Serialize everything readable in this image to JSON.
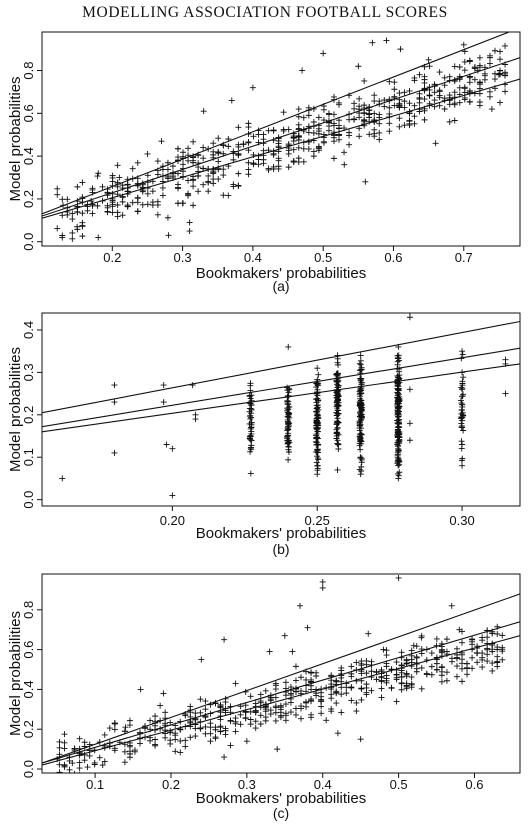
{
  "page_header": "MODELLING ASSOCIATION FOOTBALL SCORES",
  "chart_data": [
    {
      "type": "scatter",
      "panel_label": "(a)",
      "xlabel": "Bookmakers' probabilities",
      "ylabel": "Model probabilities",
      "xlim": [
        0.1,
        0.78
      ],
      "ylim": [
        -0.02,
        0.98
      ],
      "xticks": [
        0.2,
        0.3,
        0.4,
        0.5,
        0.6,
        0.7
      ],
      "xtick_labels": [
        "0.2",
        "0.3",
        "0.4",
        "0.5",
        "0.6",
        "0.7"
      ],
      "yticks": [
        0.0,
        0.2,
        0.4,
        0.6,
        0.8
      ],
      "ytick_labels": [
        "0.0",
        "0.2",
        "0.4",
        "0.6",
        "0.8"
      ],
      "grid": false,
      "marker": "+",
      "lines": [
        {
          "x": [
            0.1,
            0.78
          ],
          "y": [
            0.13,
            1.0
          ]
        },
        {
          "x": [
            0.1,
            0.78
          ],
          "y": [
            0.12,
            0.86
          ]
        },
        {
          "x": [
            0.1,
            0.78
          ],
          "y": [
            0.11,
            0.76
          ]
        }
      ],
      "cloud": {
        "x_range": [
          0.12,
          0.76
        ],
        "slope": 1.05,
        "intercept": 0.0,
        "spread": 0.085,
        "stack_step": 0.007,
        "n": 620
      },
      "points": [
        [
          0.13,
          0.17
        ],
        [
          0.15,
          0.07
        ],
        [
          0.17,
          0.19
        ],
        [
          0.18,
          0.32
        ],
        [
          0.18,
          0.02
        ],
        [
          0.21,
          0.3
        ],
        [
          0.25,
          0.41
        ],
        [
          0.27,
          0.47
        ],
        [
          0.28,
          0.03
        ],
        [
          0.31,
          0.05
        ],
        [
          0.3,
          0.18
        ],
        [
          0.33,
          0.61
        ],
        [
          0.37,
          0.66
        ],
        [
          0.4,
          0.72
        ],
        [
          0.5,
          0.88
        ],
        [
          0.53,
          0.36
        ],
        [
          0.56,
          0.28
        ],
        [
          0.57,
          0.93
        ],
        [
          0.59,
          0.94
        ],
        [
          0.61,
          0.9
        ],
        [
          0.65,
          0.85
        ],
        [
          0.66,
          0.46
        ],
        [
          0.7,
          0.92
        ],
        [
          0.72,
          0.8
        ],
        [
          0.74,
          0.62
        ],
        [
          0.75,
          0.78
        ],
        [
          0.31,
          0.09
        ],
        [
          0.47,
          0.8
        ],
        [
          0.55,
          0.82
        ],
        [
          0.68,
          0.56
        ]
      ]
    },
    {
      "type": "scatter",
      "panel_label": "(b)",
      "xlabel": "Bookmakers' probabilities",
      "ylabel": "Model probabilities",
      "xlim": [
        0.155,
        0.32
      ],
      "ylim": [
        -0.015,
        0.44
      ],
      "xticks": [
        0.2,
        0.25,
        0.3
      ],
      "xtick_labels": [
        "0.20",
        "0.25",
        "0.30"
      ],
      "yticks": [
        0.0,
        0.1,
        0.2,
        0.3,
        0.4
      ],
      "ytick_labels": [
        "0.0",
        "0.1",
        "0.2",
        "0.3",
        "0.4"
      ],
      "grid": false,
      "marker": "+",
      "lines": [
        {
          "x": [
            0.155,
            0.32
          ],
          "y": [
            0.205,
            0.42
          ]
        },
        {
          "x": [
            0.155,
            0.32
          ],
          "y": [
            0.172,
            0.357
          ]
        },
        {
          "x": [
            0.155,
            0.32
          ],
          "y": [
            0.16,
            0.32
          ]
        }
      ],
      "columns": [
        {
          "x": 0.227,
          "y_range": [
            0.05,
            0.3
          ],
          "n": 45
        },
        {
          "x": 0.24,
          "y_range": [
            0.08,
            0.28
          ],
          "n": 60
        },
        {
          "x": 0.25,
          "y_range": [
            0.05,
            0.31
          ],
          "n": 90
        },
        {
          "x": 0.257,
          "y_range": [
            0.11,
            0.35
          ],
          "n": 90
        },
        {
          "x": 0.265,
          "y_range": [
            0.06,
            0.34
          ],
          "n": 110
        },
        {
          "x": 0.278,
          "y_range": [
            0.05,
            0.36
          ],
          "n": 160
        },
        {
          "x": 0.3,
          "y_range": [
            0.08,
            0.35
          ],
          "n": 35
        }
      ],
      "points": [
        [
          0.162,
          0.05
        ],
        [
          0.18,
          0.27
        ],
        [
          0.18,
          0.23
        ],
        [
          0.18,
          0.11
        ],
        [
          0.197,
          0.27
        ],
        [
          0.197,
          0.23
        ],
        [
          0.198,
          0.13
        ],
        [
          0.2,
          0.12
        ],
        [
          0.2,
          0.01
        ],
        [
          0.207,
          0.27
        ],
        [
          0.208,
          0.19
        ],
        [
          0.208,
          0.2
        ],
        [
          0.25,
          0.31
        ],
        [
          0.257,
          0.34
        ],
        [
          0.265,
          0.34
        ],
        [
          0.278,
          0.36
        ],
        [
          0.282,
          0.44
        ],
        [
          0.282,
          0.43
        ],
        [
          0.282,
          0.26
        ],
        [
          0.282,
          0.14
        ],
        [
          0.282,
          0.18
        ],
        [
          0.3,
          0.35
        ],
        [
          0.3,
          0.3
        ],
        [
          0.3,
          0.26
        ],
        [
          0.3,
          0.17
        ],
        [
          0.3,
          0.13
        ],
        [
          0.3,
          0.08
        ],
        [
          0.315,
          0.33
        ],
        [
          0.315,
          0.32
        ],
        [
          0.315,
          0.25
        ],
        [
          0.24,
          0.36
        ],
        [
          0.25,
          0.06
        ],
        [
          0.257,
          0.07
        ],
        [
          0.265,
          0.06
        ],
        [
          0.278,
          0.05
        ]
      ]
    },
    {
      "type": "scatter",
      "panel_label": "(c)",
      "xlabel": "Bookmakers' probabilities",
      "ylabel": "Model probabilities",
      "xlim": [
        0.03,
        0.66
      ],
      "ylim": [
        -0.02,
        0.98
      ],
      "xticks": [
        0.1,
        0.2,
        0.3,
        0.4,
        0.5,
        0.6
      ],
      "xtick_labels": [
        "0.1",
        "0.2",
        "0.3",
        "0.4",
        "0.5",
        "0.6"
      ],
      "yticks": [
        0.0,
        0.2,
        0.4,
        0.6,
        0.8
      ],
      "ytick_labels": [
        "0.0",
        "0.2",
        "0.4",
        "0.6",
        "0.8"
      ],
      "grid": false,
      "marker": "+",
      "lines": [
        {
          "x": [
            0.03,
            0.66
          ],
          "y": [
            0.03,
            0.88
          ]
        },
        {
          "x": [
            0.03,
            0.66
          ],
          "y": [
            0.03,
            0.74
          ]
        },
        {
          "x": [
            0.03,
            0.66
          ],
          "y": [
            0.02,
            0.67
          ]
        }
      ],
      "cloud": {
        "x_range": [
          0.05,
          0.64
        ],
        "slope": 0.98,
        "intercept": 0.0,
        "spread": 0.075,
        "stack_step": 0.006,
        "n": 560
      },
      "points": [
        [
          0.05,
          0.05
        ],
        [
          0.07,
          0.03
        ],
        [
          0.09,
          0.01
        ],
        [
          0.11,
          0.02
        ],
        [
          0.14,
          0.21
        ],
        [
          0.16,
          0.4
        ],
        [
          0.19,
          0.38
        ],
        [
          0.24,
          0.55
        ],
        [
          0.27,
          0.65
        ],
        [
          0.33,
          0.59
        ],
        [
          0.35,
          0.67
        ],
        [
          0.37,
          0.82
        ],
        [
          0.38,
          0.71
        ],
        [
          0.4,
          0.94
        ],
        [
          0.4,
          0.91
        ],
        [
          0.45,
          0.15
        ],
        [
          0.46,
          0.68
        ],
        [
          0.48,
          0.6
        ],
        [
          0.5,
          0.96
        ],
        [
          0.52,
          0.62
        ],
        [
          0.53,
          0.66
        ],
        [
          0.55,
          0.62
        ],
        [
          0.57,
          0.82
        ],
        [
          0.58,
          0.7
        ],
        [
          0.63,
          0.6
        ],
        [
          0.34,
          0.1
        ],
        [
          0.27,
          0.06
        ],
        [
          0.3,
          0.14
        ],
        [
          0.42,
          0.18
        ],
        [
          0.36,
          0.59
        ]
      ]
    }
  ]
}
